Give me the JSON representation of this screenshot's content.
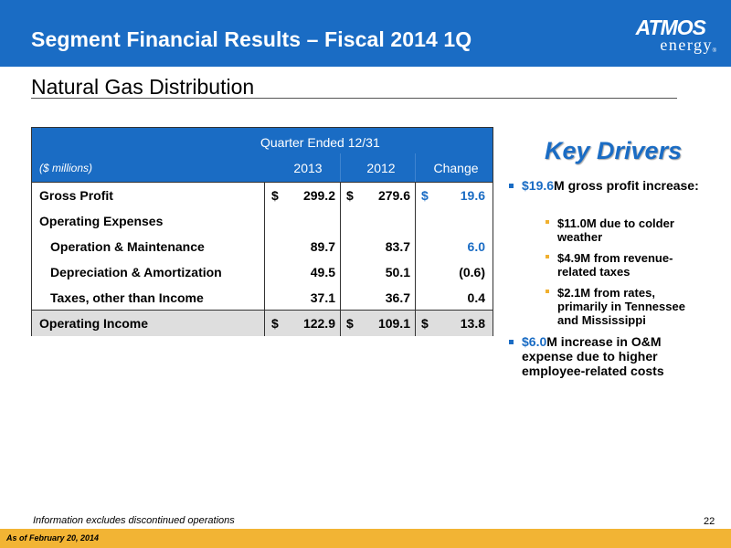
{
  "header": {
    "title": "Segment Financial Results – Fiscal 2014 1Q",
    "logo_top": "ATMOS",
    "logo_bottom": "energy",
    "logo_reg": "®"
  },
  "subtitle": "Natural Gas Distribution",
  "table": {
    "group_header": "Quarter Ended  12/31",
    "units_label": "($ millions)",
    "columns": [
      "2013",
      "2012",
      "Change"
    ],
    "rows": [
      {
        "label": "Gross Profit",
        "c2013": "299.2",
        "c2012": "279.6",
        "change": "19.6",
        "cur": "$"
      },
      {
        "label": "Operating Expenses",
        "c2013": "",
        "c2012": "",
        "change": "",
        "cur": ""
      },
      {
        "label": "Operation & Maintenance",
        "c2013": "89.7",
        "c2012": "83.7",
        "change": "6.0",
        "cur": ""
      },
      {
        "label": "Depreciation & Amortization",
        "c2013": "49.5",
        "c2012": "50.1",
        "change": "(0.6)",
        "cur": ""
      },
      {
        "label": "Taxes, other than Income",
        "c2013": "37.1",
        "c2012": "36.7",
        "change": "0.4",
        "cur": ""
      },
      {
        "label": "Operating Income",
        "c2013": "122.9",
        "c2012": "109.1",
        "change": "13.8",
        "cur": "$"
      }
    ]
  },
  "key_drivers": {
    "title": "Key Drivers",
    "b1_value": "$19.6",
    "b1_text": "M gross profit increase:",
    "sub1": "$11.0M due to colder weather",
    "sub2": "$4.9M from revenue-related taxes",
    "sub3": "$2.1M from rates, primarily in Tennessee and Mississippi",
    "b2_value": "$6.0",
    "b2_text": "M increase in O&M expense due to higher employee-related costs"
  },
  "footnote": "Information excludes discontinued operations",
  "page_number": "22",
  "footer_text": "As of February 20, 2014",
  "colors": {
    "brand_blue": "#1a6cc4",
    "footer_gold": "#f2b434",
    "total_row": "#dedede"
  }
}
